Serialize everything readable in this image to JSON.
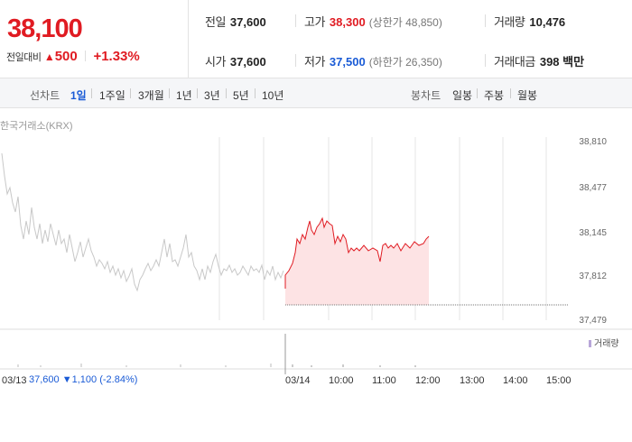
{
  "summary": {
    "price": "38,100",
    "change_label": "전일대비",
    "change_arrow": "▲",
    "change_amount": "500",
    "change_percent": "+1.33%",
    "stats": {
      "prev_close": {
        "label": "전일",
        "value": "37,600"
      },
      "high": {
        "label": "고가",
        "value": "38,300",
        "sub": "(상한가 48,850)"
      },
      "volume": {
        "label": "거래량",
        "value": "10,476"
      },
      "open": {
        "label": "시가",
        "value": "37,600"
      },
      "low": {
        "label": "저가",
        "value": "37,500",
        "sub": "(하한가 26,350)"
      },
      "trade_value": {
        "label": "거래대금",
        "value": "398 백만"
      }
    }
  },
  "period_bar": {
    "line_label": "선차트",
    "line_periods": [
      "1일",
      "1주일",
      "3개월",
      "1년",
      "3년",
      "5년",
      "10년"
    ],
    "active_period": "1일",
    "candle_label": "봉차트",
    "candle_periods": [
      "일봉",
      "주봉",
      "월봉"
    ]
  },
  "chart": {
    "exchange": "한국거래소(KRX)",
    "volume_legend": "거래량",
    "y_ticks": [
      "38,810",
      "38,477",
      "38,145",
      "37,812",
      "37,479"
    ],
    "x_ticks": [
      "03/13",
      "03/14",
      "10:00",
      "11:00",
      "12:00",
      "13:00",
      "14:00",
      "15:00"
    ],
    "footer": {
      "prev_date": "03/13",
      "prev_close": "37,600",
      "prev_change": "▼1,100",
      "prev_change_pct": "(-2.84%)"
    },
    "colors": {
      "today_line": "#e01b22",
      "today_fill": "#fde3e4",
      "prev_line": "#c8c8c8",
      "grid": "#e6e6e6"
    }
  },
  "chart_data": {
    "type": "line",
    "xlabel": "",
    "ylabel": "",
    "ylim": [
      37479,
      38810
    ],
    "reference_line": 37600,
    "series": [
      {
        "x": [
          "09:00",
          "09:15",
          "09:30",
          "09:45",
          "10:00",
          "10:15",
          "10:30",
          "10:45",
          "11:00",
          "11:15",
          "11:30",
          "11:45",
          "12:00",
          "12:15"
        ],
        "values": [
          37650,
          38150,
          38100,
          38250,
          38300,
          38050,
          38130,
          38000,
          38000,
          38050,
          37920,
          38060,
          38100,
          38100
        ]
      }
    ]
  }
}
